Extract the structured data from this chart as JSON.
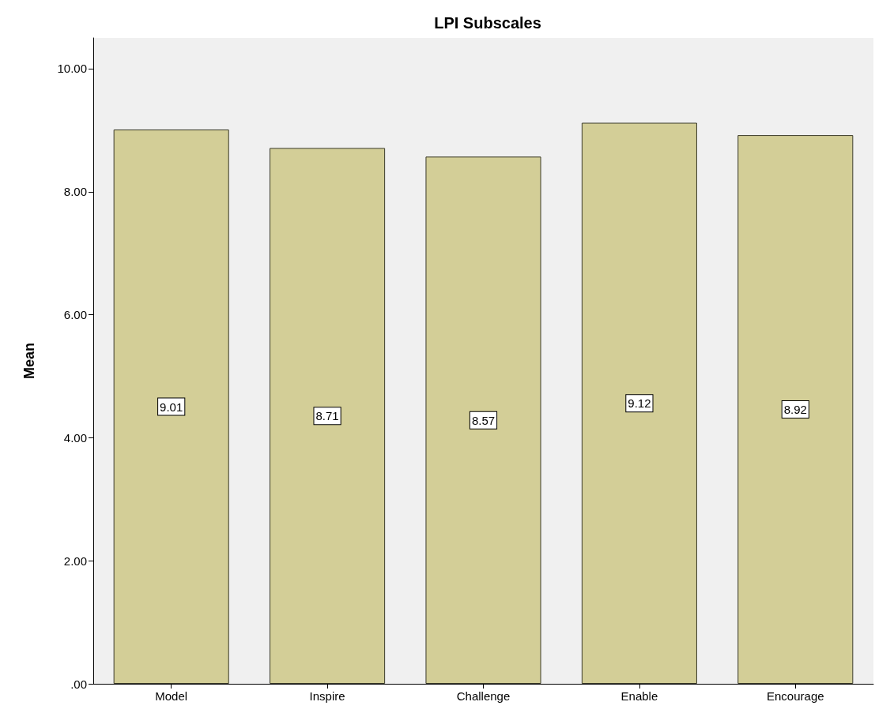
{
  "chart_data": {
    "type": "bar",
    "title": "LPI Subscales",
    "ylabel": "Mean",
    "categories": [
      "Model",
      "Inspire",
      "Challenge",
      "Enable",
      "Encourage"
    ],
    "values": [
      9.01,
      8.71,
      8.57,
      9.12,
      8.92
    ],
    "color": "#d3ce97",
    "ylim": [
      0,
      10.5
    ],
    "yticks": [
      {
        "value": 0,
        "label": ".00"
      },
      {
        "value": 2,
        "label": "2.00"
      },
      {
        "value": 4,
        "label": "4.00"
      },
      {
        "value": 6,
        "label": "6.00"
      },
      {
        "value": 8,
        "label": "8.00"
      },
      {
        "value": 10,
        "label": "10.00"
      }
    ],
    "grid": false,
    "data_labels": true
  }
}
